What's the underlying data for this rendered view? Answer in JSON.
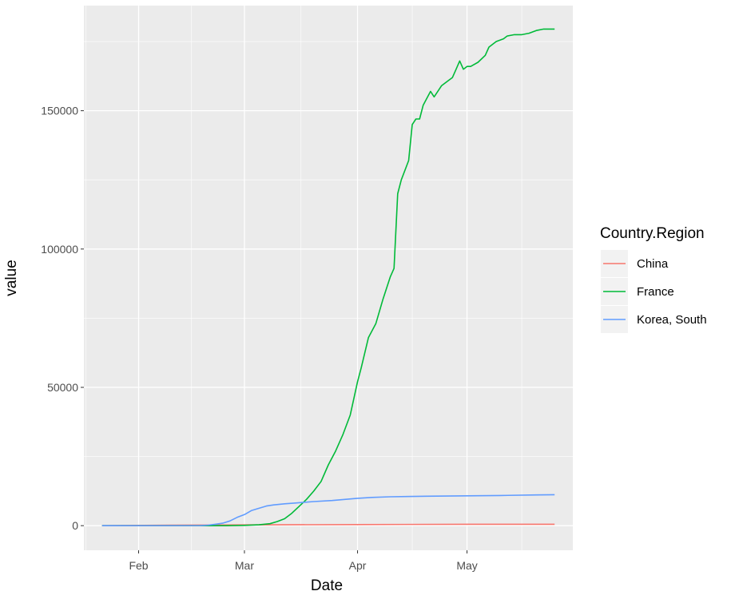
{
  "chart_data": {
    "type": "line",
    "xlabel": "Date",
    "ylabel": "value",
    "x_tick_labels": [
      "Feb",
      "Mar",
      "Apr",
      "May"
    ],
    "x_ticks": [
      "2020-02-01",
      "2020-03-01",
      "2020-04-01",
      "2020-05-01"
    ],
    "x_range": [
      "2020-01-17",
      "2020-05-30"
    ],
    "y_tick_labels": [
      "0",
      "50000",
      "100000",
      "150000"
    ],
    "y_ticks": [
      0,
      50000,
      100000,
      150000
    ],
    "ylim": [
      -8900,
      188000
    ],
    "grid": true,
    "background": "#EBEBEB",
    "legend": {
      "title": "Country.Region",
      "position": "right"
    },
    "series": [
      {
        "name": "China",
        "color": "#F8766D",
        "points": [
          [
            "2020-01-22",
            0
          ],
          [
            "2020-02-10",
            200
          ],
          [
            "2020-03-01",
            280
          ],
          [
            "2020-04-01",
            400
          ],
          [
            "2020-05-01",
            500
          ],
          [
            "2020-05-25",
            500
          ]
        ]
      },
      {
        "name": "France",
        "color": "#00BA38",
        "points": [
          [
            "2020-01-22",
            0
          ],
          [
            "2020-02-25",
            0
          ],
          [
            "2020-03-01",
            100
          ],
          [
            "2020-03-05",
            300
          ],
          [
            "2020-03-08",
            700
          ],
          [
            "2020-03-10",
            1500
          ],
          [
            "2020-03-12",
            2500
          ],
          [
            "2020-03-14",
            4500
          ],
          [
            "2020-03-16",
            7000
          ],
          [
            "2020-03-18",
            9500
          ],
          [
            "2020-03-20",
            12500
          ],
          [
            "2020-03-22",
            16000
          ],
          [
            "2020-03-24",
            22000
          ],
          [
            "2020-03-26",
            27000
          ],
          [
            "2020-03-28",
            33000
          ],
          [
            "2020-03-30",
            40000
          ],
          [
            "2020-04-01",
            52000
          ],
          [
            "2020-04-02",
            57000
          ],
          [
            "2020-04-04",
            68000
          ],
          [
            "2020-04-06",
            73000
          ],
          [
            "2020-04-08",
            82000
          ],
          [
            "2020-04-10",
            90000
          ],
          [
            "2020-04-11",
            93000
          ],
          [
            "2020-04-12",
            120000
          ],
          [
            "2020-04-13",
            125000
          ],
          [
            "2020-04-15",
            132000
          ],
          [
            "2020-04-16",
            145000
          ],
          [
            "2020-04-17",
            147000
          ],
          [
            "2020-04-18",
            147000
          ],
          [
            "2020-04-19",
            152000
          ],
          [
            "2020-04-21",
            157000
          ],
          [
            "2020-04-22",
            155000
          ],
          [
            "2020-04-24",
            159000
          ],
          [
            "2020-04-26",
            161000
          ],
          [
            "2020-04-27",
            162000
          ],
          [
            "2020-04-28",
            165000
          ],
          [
            "2020-04-29",
            168000
          ],
          [
            "2020-04-30",
            165000
          ],
          [
            "2020-05-01",
            166000
          ],
          [
            "2020-05-02",
            166000
          ],
          [
            "2020-05-04",
            167500
          ],
          [
            "2020-05-06",
            170000
          ],
          [
            "2020-05-07",
            173000
          ],
          [
            "2020-05-09",
            175000
          ],
          [
            "2020-05-11",
            176000
          ],
          [
            "2020-05-12",
            177000
          ],
          [
            "2020-05-14",
            177500
          ],
          [
            "2020-05-16",
            177500
          ],
          [
            "2020-05-18",
            178000
          ],
          [
            "2020-05-20",
            179000
          ],
          [
            "2020-05-22",
            179500
          ],
          [
            "2020-05-25",
            179500
          ]
        ]
      },
      {
        "name": "Korea, South",
        "color": "#619CFF",
        "points": [
          [
            "2020-01-22",
            0
          ],
          [
            "2020-02-18",
            30
          ],
          [
            "2020-02-20",
            200
          ],
          [
            "2020-02-22",
            500
          ],
          [
            "2020-02-24",
            900
          ],
          [
            "2020-02-26",
            1700
          ],
          [
            "2020-02-28",
            3000
          ],
          [
            "2020-03-01",
            4000
          ],
          [
            "2020-03-03",
            5500
          ],
          [
            "2020-03-05",
            6300
          ],
          [
            "2020-03-07",
            7100
          ],
          [
            "2020-03-09",
            7500
          ],
          [
            "2020-03-12",
            7900
          ],
          [
            "2020-03-15",
            8200
          ],
          [
            "2020-03-20",
            8700
          ],
          [
            "2020-03-25",
            9100
          ],
          [
            "2020-04-01",
            9900
          ],
          [
            "2020-04-05",
            10200
          ],
          [
            "2020-04-10",
            10450
          ],
          [
            "2020-04-20",
            10650
          ],
          [
            "2020-05-01",
            10800
          ],
          [
            "2020-05-10",
            10900
          ],
          [
            "2020-05-20",
            11100
          ],
          [
            "2020-05-25",
            11200
          ]
        ]
      }
    ]
  }
}
